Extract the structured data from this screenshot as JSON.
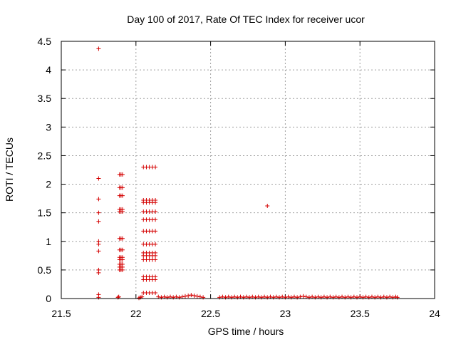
{
  "chart_data": {
    "type": "scatter",
    "title": "Day 100 of 2017, Rate Of TEC Index for receiver ucor",
    "xlabel": "GPS time / hours",
    "ylabel": "ROTI / TECUs",
    "xlim": [
      21.5,
      24
    ],
    "ylim": [
      0,
      4.5
    ],
    "x_ticks": [
      "21.5",
      "22",
      "22.5",
      "23",
      "23.5",
      "24"
    ],
    "y_ticks": [
      "0",
      "0.5",
      "1",
      "1.5",
      "2",
      "2.5",
      "3",
      "3.5",
      "4",
      "4.5"
    ],
    "grid": true,
    "marker": "plus",
    "color": "#d40000",
    "series": [
      {
        "values": [
          [
            21.75,
            4.37
          ],
          [
            21.75,
            2.1
          ],
          [
            21.75,
            1.74
          ],
          [
            21.75,
            1.5
          ],
          [
            21.75,
            1.35
          ],
          [
            21.75,
            1.0
          ],
          [
            21.75,
            0.95
          ],
          [
            21.75,
            0.83
          ],
          [
            21.75,
            0.5
          ],
          [
            21.75,
            0.45
          ],
          [
            21.75,
            0.07
          ],
          [
            21.75,
            0.02
          ],
          [
            21.88,
            0.02
          ],
          [
            21.885,
            0.03
          ],
          [
            21.89,
            2.17
          ],
          [
            21.9,
            2.17
          ],
          [
            21.91,
            2.17
          ],
          [
            21.89,
            1.94
          ],
          [
            21.9,
            1.94
          ],
          [
            21.91,
            1.94
          ],
          [
            21.89,
            1.8
          ],
          [
            21.9,
            1.8
          ],
          [
            21.91,
            1.8
          ],
          [
            21.89,
            1.56
          ],
          [
            21.9,
            1.56
          ],
          [
            21.91,
            1.56
          ],
          [
            21.89,
            1.52
          ],
          [
            21.9,
            1.52
          ],
          [
            21.91,
            1.52
          ],
          [
            21.89,
            1.05
          ],
          [
            21.9,
            1.05
          ],
          [
            21.91,
            1.05
          ],
          [
            21.89,
            0.85
          ],
          [
            21.9,
            0.85
          ],
          [
            21.91,
            0.85
          ],
          [
            21.89,
            0.72
          ],
          [
            21.9,
            0.72
          ],
          [
            21.91,
            0.72
          ],
          [
            21.89,
            0.68
          ],
          [
            21.9,
            0.68
          ],
          [
            21.91,
            0.68
          ],
          [
            21.89,
            0.6
          ],
          [
            21.9,
            0.6
          ],
          [
            21.91,
            0.6
          ],
          [
            21.89,
            0.55
          ],
          [
            21.9,
            0.55
          ],
          [
            21.91,
            0.55
          ],
          [
            21.89,
            0.5
          ],
          [
            21.9,
            0.5
          ],
          [
            21.91,
            0.5
          ],
          [
            22.02,
            0.01
          ],
          [
            22.03,
            0.02
          ],
          [
            22.04,
            0.03
          ],
          [
            22.05,
            2.3
          ],
          [
            22.07,
            2.3
          ],
          [
            22.09,
            2.3
          ],
          [
            22.11,
            2.3
          ],
          [
            22.13,
            2.3
          ],
          [
            22.05,
            1.72
          ],
          [
            22.07,
            1.72
          ],
          [
            22.09,
            1.72
          ],
          [
            22.11,
            1.72
          ],
          [
            22.13,
            1.72
          ],
          [
            22.05,
            1.68
          ],
          [
            22.07,
            1.68
          ],
          [
            22.09,
            1.68
          ],
          [
            22.11,
            1.68
          ],
          [
            22.13,
            1.68
          ],
          [
            22.05,
            1.52
          ],
          [
            22.07,
            1.52
          ],
          [
            22.09,
            1.52
          ],
          [
            22.11,
            1.52
          ],
          [
            22.13,
            1.52
          ],
          [
            22.05,
            1.38
          ],
          [
            22.07,
            1.38
          ],
          [
            22.09,
            1.38
          ],
          [
            22.11,
            1.38
          ],
          [
            22.13,
            1.38
          ],
          [
            22.05,
            1.18
          ],
          [
            22.07,
            1.18
          ],
          [
            22.09,
            1.18
          ],
          [
            22.11,
            1.18
          ],
          [
            22.13,
            1.18
          ],
          [
            22.05,
            0.95
          ],
          [
            22.07,
            0.95
          ],
          [
            22.09,
            0.95
          ],
          [
            22.11,
            0.95
          ],
          [
            22.13,
            0.95
          ],
          [
            22.05,
            0.8
          ],
          [
            22.07,
            0.8
          ],
          [
            22.09,
            0.8
          ],
          [
            22.11,
            0.8
          ],
          [
            22.13,
            0.8
          ],
          [
            22.05,
            0.75
          ],
          [
            22.07,
            0.75
          ],
          [
            22.09,
            0.75
          ],
          [
            22.11,
            0.75
          ],
          [
            22.13,
            0.75
          ],
          [
            22.05,
            0.68
          ],
          [
            22.07,
            0.68
          ],
          [
            22.09,
            0.68
          ],
          [
            22.11,
            0.68
          ],
          [
            22.13,
            0.68
          ],
          [
            22.05,
            0.38
          ],
          [
            22.07,
            0.38
          ],
          [
            22.09,
            0.38
          ],
          [
            22.11,
            0.38
          ],
          [
            22.13,
            0.38
          ],
          [
            22.05,
            0.33
          ],
          [
            22.07,
            0.33
          ],
          [
            22.09,
            0.33
          ],
          [
            22.11,
            0.33
          ],
          [
            22.13,
            0.33
          ],
          [
            22.05,
            0.1
          ],
          [
            22.07,
            0.1
          ],
          [
            22.09,
            0.1
          ],
          [
            22.11,
            0.1
          ],
          [
            22.13,
            0.1
          ],
          [
            22.15,
            0.03
          ],
          [
            22.17,
            0.02
          ],
          [
            22.19,
            0.03
          ],
          [
            22.21,
            0.02
          ],
          [
            22.23,
            0.03
          ],
          [
            22.25,
            0.02
          ],
          [
            22.27,
            0.03
          ],
          [
            22.29,
            0.02
          ],
          [
            22.31,
            0.03
          ],
          [
            22.33,
            0.04
          ],
          [
            22.35,
            0.05
          ],
          [
            22.37,
            0.06
          ],
          [
            22.39,
            0.05
          ],
          [
            22.41,
            0.04
          ],
          [
            22.43,
            0.03
          ],
          [
            22.45,
            0.02
          ],
          [
            22.56,
            0.02
          ],
          [
            22.58,
            0.03
          ],
          [
            22.6,
            0.02
          ],
          [
            22.62,
            0.03
          ],
          [
            22.64,
            0.02
          ],
          [
            22.66,
            0.03
          ],
          [
            22.68,
            0.02
          ],
          [
            22.7,
            0.03
          ],
          [
            22.72,
            0.02
          ],
          [
            22.74,
            0.03
          ],
          [
            22.76,
            0.02
          ],
          [
            22.78,
            0.03
          ],
          [
            22.8,
            0.02
          ],
          [
            22.82,
            0.03
          ],
          [
            22.84,
            0.02
          ],
          [
            22.86,
            0.03
          ],
          [
            22.88,
            1.62
          ],
          [
            22.88,
            0.02
          ],
          [
            22.9,
            0.03
          ],
          [
            22.92,
            0.02
          ],
          [
            22.94,
            0.03
          ],
          [
            22.96,
            0.02
          ],
          [
            22.98,
            0.03
          ],
          [
            23.0,
            0.02
          ],
          [
            23.02,
            0.03
          ],
          [
            23.04,
            0.02
          ],
          [
            23.06,
            0.03
          ],
          [
            23.08,
            0.02
          ],
          [
            23.1,
            0.03
          ],
          [
            23.12,
            0.04
          ],
          [
            23.14,
            0.03
          ],
          [
            23.16,
            0.02
          ],
          [
            23.18,
            0.03
          ],
          [
            23.2,
            0.02
          ],
          [
            23.22,
            0.03
          ],
          [
            23.24,
            0.02
          ],
          [
            23.26,
            0.03
          ],
          [
            23.28,
            0.02
          ],
          [
            23.3,
            0.03
          ],
          [
            23.32,
            0.02
          ],
          [
            23.34,
            0.03
          ],
          [
            23.36,
            0.02
          ],
          [
            23.38,
            0.03
          ],
          [
            23.4,
            0.02
          ],
          [
            23.42,
            0.03
          ],
          [
            23.44,
            0.02
          ],
          [
            23.46,
            0.03
          ],
          [
            23.48,
            0.02
          ],
          [
            23.5,
            0.03
          ],
          [
            23.52,
            0.02
          ],
          [
            23.54,
            0.03
          ],
          [
            23.56,
            0.02
          ],
          [
            23.58,
            0.03
          ],
          [
            23.6,
            0.02
          ],
          [
            23.62,
            0.03
          ],
          [
            23.64,
            0.02
          ],
          [
            23.66,
            0.03
          ],
          [
            23.68,
            0.02
          ],
          [
            23.7,
            0.03
          ],
          [
            23.72,
            0.02
          ],
          [
            23.74,
            0.03
          ],
          [
            23.75,
            0.02
          ]
        ]
      }
    ]
  }
}
